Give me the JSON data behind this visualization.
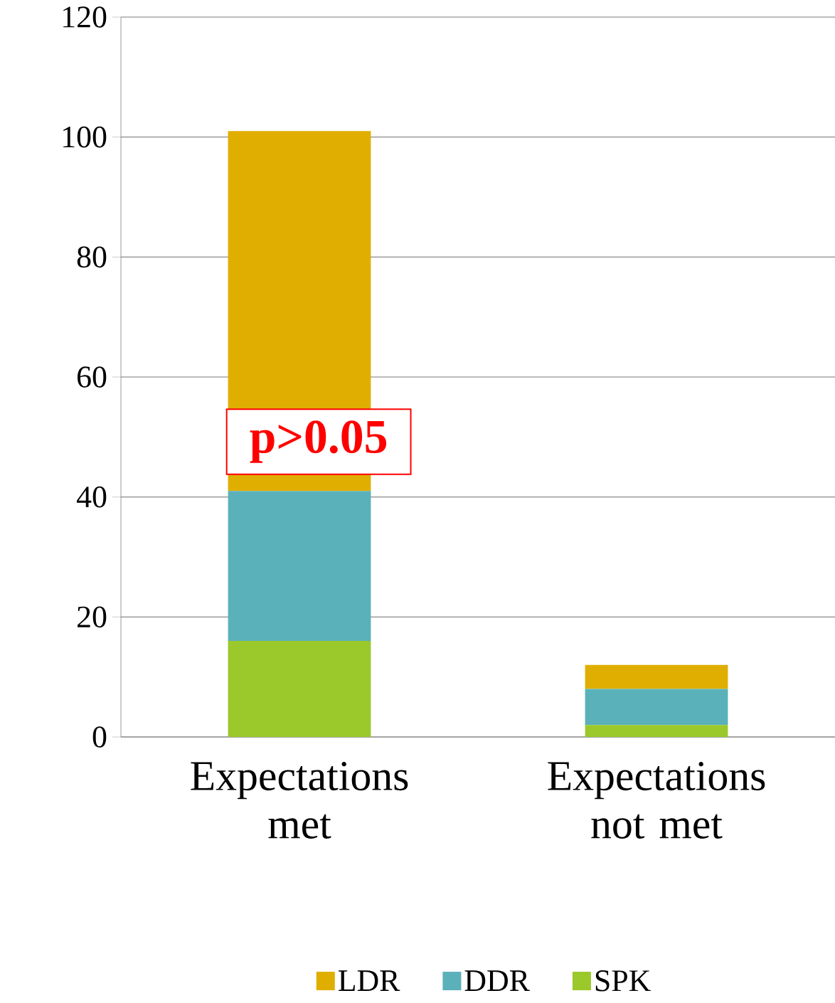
{
  "chart_data": {
    "type": "bar",
    "stacked": true,
    "categories": [
      "Expectations met",
      "Expectations not met"
    ],
    "series": [
      {
        "name": "SPK",
        "color": "#9bc82a",
        "values": [
          16,
          2
        ]
      },
      {
        "name": "DDR",
        "color": "#5bb1b9",
        "values": [
          25,
          6
        ]
      },
      {
        "name": "LDR",
        "color": "#e0ae00",
        "values": [
          60,
          4
        ]
      }
    ],
    "ylim": [
      0,
      120
    ],
    "yticks": [
      0,
      20,
      40,
      60,
      80,
      100,
      120
    ],
    "grid": "y",
    "legend": "bottom",
    "annotations": [
      "p>0.05"
    ]
  }
}
